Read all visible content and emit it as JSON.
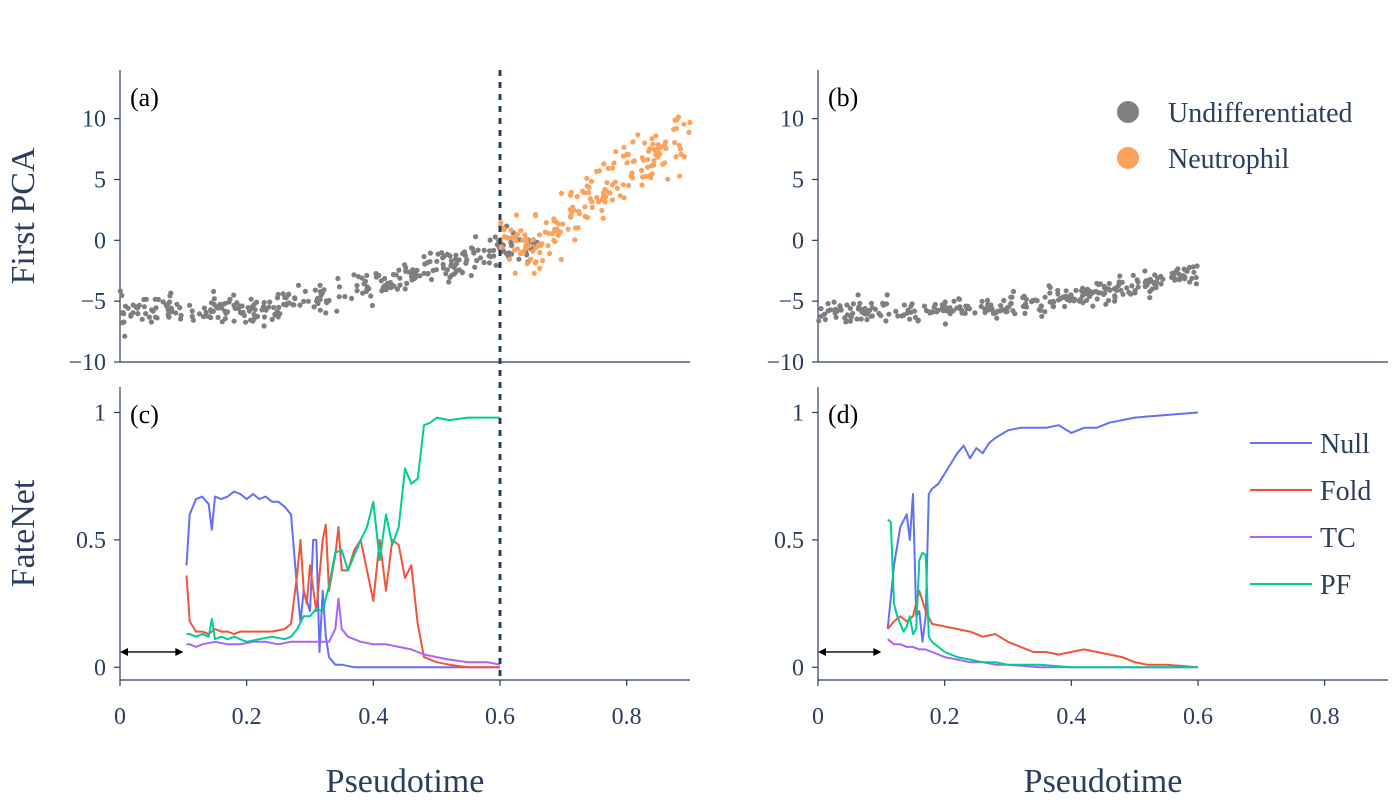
{
  "chart_data": [
    {
      "id": "a",
      "type": "scatter",
      "panel_label": "(a)",
      "ylabel": "First PCA",
      "xlim": [
        0,
        0.9
      ],
      "ylim": [
        -10,
        14
      ],
      "yticks": [
        10,
        5,
        0,
        -5,
        -10
      ],
      "ytick_labels": [
        "10",
        "5",
        "0",
        "−5",
        "−10"
      ],
      "vline": 0.6,
      "series": [
        {
          "name": "Undifferentiated",
          "color": "#7f7f7f",
          "trend": [
            [
              0,
              -5.8
            ],
            [
              0.1,
              -5.7
            ],
            [
              0.2,
              -5.9
            ],
            [
              0.3,
              -4.8
            ],
            [
              0.4,
              -3.6
            ],
            [
              0.5,
              -2.2
            ],
            [
              0.55,
              -1.6
            ],
            [
              0.6,
              -0.6
            ],
            [
              0.65,
              -0.4
            ],
            [
              0.9,
              10
            ]
          ],
          "spread": 0.6,
          "n": 330,
          "xrange": [
            0,
            0.66
          ]
        },
        {
          "name": "Neutrophil",
          "color": "#fea15a",
          "trend": [
            [
              0.58,
              0.5
            ],
            [
              0.62,
              -0.5
            ],
            [
              0.66,
              -0.8
            ],
            [
              0.7,
              1.5
            ],
            [
              0.75,
              3.5
            ],
            [
              0.8,
              5.5
            ],
            [
              0.85,
              7.0
            ],
            [
              0.9,
              9.0
            ]
          ],
          "spread": 1.2,
          "n": 190,
          "xrange": [
            0.6,
            0.9
          ]
        }
      ]
    },
    {
      "id": "b",
      "type": "scatter",
      "panel_label": "(b)",
      "xlim": [
        0,
        0.9
      ],
      "ylim": [
        -10,
        14
      ],
      "yticks": [
        10,
        5,
        0,
        -5,
        -10
      ],
      "ytick_labels": [
        "10",
        "5",
        "0",
        "−5",
        "−10"
      ],
      "legend": {
        "position": "top-right",
        "entries": [
          {
            "name": "Undifferentiated",
            "color": "#7f7f7f"
          },
          {
            "name": "Neutrophil",
            "color": "#fea15a"
          }
        ]
      },
      "series": [
        {
          "name": "Undifferentiated",
          "color": "#7f7f7f",
          "trend": [
            [
              0,
              -5.8
            ],
            [
              0.1,
              -5.9
            ],
            [
              0.2,
              -6.0
            ],
            [
              0.3,
              -5.4
            ],
            [
              0.4,
              -4.6
            ],
            [
              0.5,
              -3.8
            ],
            [
              0.6,
              -2.6
            ]
          ],
          "spread": 0.45,
          "n": 300,
          "xrange": [
            0,
            0.6
          ]
        }
      ]
    },
    {
      "id": "c",
      "type": "line",
      "panel_label": "(c)",
      "ylabel": "FateNet",
      "xlabel": "Pseudotime",
      "xlim": [
        0,
        0.9
      ],
      "ylim": [
        -0.05,
        1.1
      ],
      "xticks": [
        0,
        0.2,
        0.4,
        0.6,
        0.8
      ],
      "xtick_labels": [
        "0",
        "0.2",
        "0.4",
        "0.6",
        "0.8"
      ],
      "yticks": [
        1,
        0.5,
        0
      ],
      "ytick_labels": [
        "1",
        "0.5",
        "0"
      ],
      "vline": 0.6,
      "window_arrow": [
        0,
        0.1
      ],
      "series": [
        {
          "name": "Null",
          "color": "#636efa",
          "x": [
            0.105,
            0.11,
            0.12,
            0.13,
            0.14,
            0.145,
            0.15,
            0.16,
            0.17,
            0.18,
            0.19,
            0.2,
            0.21,
            0.22,
            0.23,
            0.24,
            0.25,
            0.26,
            0.27,
            0.28,
            0.285,
            0.29,
            0.3,
            0.305,
            0.31,
            0.315,
            0.32,
            0.325,
            0.33,
            0.34,
            0.35,
            0.37,
            0.4,
            0.45,
            0.5,
            0.55,
            0.6
          ],
          "y": [
            0.4,
            0.6,
            0.66,
            0.67,
            0.64,
            0.54,
            0.67,
            0.66,
            0.67,
            0.69,
            0.68,
            0.66,
            0.68,
            0.66,
            0.67,
            0.65,
            0.65,
            0.63,
            0.6,
            0.3,
            0.18,
            0.3,
            0.22,
            0.5,
            0.5,
            0.06,
            0.3,
            0.12,
            0.04,
            0.01,
            0.01,
            0.0,
            0.0,
            0.0,
            0.0,
            0.0,
            0.0
          ]
        },
        {
          "name": "Fold",
          "color": "#ef553b",
          "x": [
            0.105,
            0.11,
            0.12,
            0.13,
            0.14,
            0.15,
            0.16,
            0.17,
            0.18,
            0.19,
            0.2,
            0.22,
            0.24,
            0.26,
            0.27,
            0.28,
            0.285,
            0.29,
            0.295,
            0.3,
            0.31,
            0.32,
            0.325,
            0.33,
            0.34,
            0.345,
            0.35,
            0.36,
            0.37,
            0.38,
            0.39,
            0.4,
            0.41,
            0.42,
            0.43,
            0.44,
            0.45,
            0.46,
            0.47,
            0.48,
            0.5,
            0.52,
            0.55,
            0.6
          ],
          "y": [
            0.36,
            0.18,
            0.14,
            0.14,
            0.13,
            0.15,
            0.14,
            0.14,
            0.13,
            0.14,
            0.14,
            0.14,
            0.14,
            0.15,
            0.17,
            0.37,
            0.5,
            0.3,
            0.25,
            0.4,
            0.22,
            0.5,
            0.56,
            0.3,
            0.44,
            0.55,
            0.38,
            0.38,
            0.46,
            0.5,
            0.38,
            0.26,
            0.5,
            0.3,
            0.5,
            0.48,
            0.35,
            0.4,
            0.17,
            0.04,
            0.02,
            0.01,
            0.0,
            0.0
          ]
        },
        {
          "name": "TC",
          "color": "#ab63fa",
          "x": [
            0.105,
            0.11,
            0.12,
            0.13,
            0.15,
            0.17,
            0.19,
            0.21,
            0.23,
            0.25,
            0.27,
            0.29,
            0.31,
            0.33,
            0.34,
            0.345,
            0.35,
            0.36,
            0.38,
            0.4,
            0.42,
            0.44,
            0.46,
            0.48,
            0.5,
            0.52,
            0.55,
            0.58,
            0.6
          ],
          "y": [
            0.09,
            0.09,
            0.08,
            0.09,
            0.1,
            0.09,
            0.09,
            0.1,
            0.1,
            0.09,
            0.1,
            0.1,
            0.1,
            0.1,
            0.15,
            0.27,
            0.15,
            0.12,
            0.1,
            0.09,
            0.09,
            0.08,
            0.07,
            0.05,
            0.04,
            0.03,
            0.02,
            0.02,
            0.01
          ]
        },
        {
          "name": "PF",
          "color": "#00cc96",
          "x": [
            0.105,
            0.11,
            0.12,
            0.13,
            0.14,
            0.145,
            0.15,
            0.16,
            0.17,
            0.18,
            0.19,
            0.2,
            0.22,
            0.24,
            0.26,
            0.27,
            0.28,
            0.29,
            0.3,
            0.31,
            0.32,
            0.33,
            0.34,
            0.35,
            0.36,
            0.37,
            0.38,
            0.39,
            0.4,
            0.41,
            0.42,
            0.43,
            0.44,
            0.45,
            0.46,
            0.47,
            0.48,
            0.49,
            0.5,
            0.52,
            0.55,
            0.58,
            0.6
          ],
          "y": [
            0.13,
            0.13,
            0.12,
            0.13,
            0.12,
            0.19,
            0.11,
            0.12,
            0.11,
            0.12,
            0.11,
            0.1,
            0.11,
            0.12,
            0.11,
            0.12,
            0.15,
            0.2,
            0.2,
            0.23,
            0.22,
            0.32,
            0.45,
            0.46,
            0.38,
            0.44,
            0.5,
            0.55,
            0.65,
            0.42,
            0.6,
            0.48,
            0.55,
            0.78,
            0.72,
            0.74,
            0.95,
            0.96,
            0.98,
            0.97,
            0.98,
            0.98,
            0.98
          ]
        }
      ]
    },
    {
      "id": "d",
      "type": "line",
      "panel_label": "(d)",
      "xlabel": "Pseudotime",
      "xlim": [
        0,
        0.9
      ],
      "ylim": [
        -0.05,
        1.1
      ],
      "xticks": [
        0,
        0.2,
        0.4,
        0.6,
        0.8
      ],
      "xtick_labels": [
        "0",
        "0.2",
        "0.4",
        "0.6",
        "0.8"
      ],
      "yticks": [
        1,
        0.5,
        0
      ],
      "ytick_labels": [
        "1",
        "0.5",
        "0"
      ],
      "window_arrow": [
        0,
        0.1
      ],
      "legend": {
        "position": "top-right",
        "entries": [
          {
            "name": "Null",
            "color": "#636efa"
          },
          {
            "name": "Fold",
            "color": "#ef553b"
          },
          {
            "name": "TC",
            "color": "#ab63fa"
          },
          {
            "name": "PF",
            "color": "#00cc96"
          }
        ]
      },
      "series": [
        {
          "name": "Null",
          "color": "#636efa",
          "x": [
            0.11,
            0.12,
            0.13,
            0.14,
            0.145,
            0.15,
            0.155,
            0.16,
            0.165,
            0.17,
            0.175,
            0.18,
            0.19,
            0.2,
            0.21,
            0.22,
            0.23,
            0.24,
            0.25,
            0.26,
            0.27,
            0.28,
            0.3,
            0.32,
            0.34,
            0.36,
            0.38,
            0.4,
            0.42,
            0.44,
            0.46,
            0.5,
            0.55,
            0.6
          ],
          "y": [
            0.15,
            0.4,
            0.55,
            0.6,
            0.5,
            0.68,
            0.2,
            0.22,
            0.1,
            0.2,
            0.68,
            0.7,
            0.72,
            0.76,
            0.8,
            0.84,
            0.87,
            0.82,
            0.86,
            0.84,
            0.88,
            0.9,
            0.93,
            0.94,
            0.94,
            0.94,
            0.95,
            0.92,
            0.94,
            0.94,
            0.96,
            0.98,
            0.99,
            1.0
          ]
        },
        {
          "name": "Fold",
          "color": "#ef553b",
          "x": [
            0.11,
            0.12,
            0.13,
            0.14,
            0.15,
            0.16,
            0.17,
            0.18,
            0.2,
            0.22,
            0.24,
            0.26,
            0.28,
            0.3,
            0.32,
            0.34,
            0.36,
            0.38,
            0.4,
            0.42,
            0.44,
            0.46,
            0.48,
            0.5,
            0.52,
            0.55,
            0.6
          ],
          "y": [
            0.15,
            0.18,
            0.2,
            0.18,
            0.2,
            0.3,
            0.22,
            0.17,
            0.16,
            0.15,
            0.14,
            0.12,
            0.13,
            0.1,
            0.08,
            0.06,
            0.06,
            0.05,
            0.06,
            0.07,
            0.06,
            0.05,
            0.04,
            0.02,
            0.01,
            0.01,
            0.0
          ]
        },
        {
          "name": "TC",
          "color": "#ab63fa",
          "x": [
            0.11,
            0.12,
            0.13,
            0.14,
            0.15,
            0.16,
            0.17,
            0.18,
            0.19,
            0.2,
            0.22,
            0.24,
            0.26,
            0.28,
            0.3,
            0.35,
            0.4,
            0.5,
            0.6
          ],
          "y": [
            0.11,
            0.09,
            0.09,
            0.08,
            0.08,
            0.07,
            0.07,
            0.06,
            0.05,
            0.04,
            0.03,
            0.02,
            0.02,
            0.01,
            0.01,
            0.0,
            0.0,
            0.0,
            0.0
          ]
        },
        {
          "name": "PF",
          "color": "#00cc96",
          "x": [
            0.11,
            0.115,
            0.12,
            0.125,
            0.13,
            0.135,
            0.14,
            0.145,
            0.15,
            0.155,
            0.16,
            0.165,
            0.17,
            0.175,
            0.18,
            0.19,
            0.2,
            0.22,
            0.24,
            0.26,
            0.28,
            0.3,
            0.35,
            0.4,
            0.5,
            0.6
          ],
          "y": [
            0.58,
            0.57,
            0.25,
            0.2,
            0.17,
            0.14,
            0.16,
            0.2,
            0.13,
            0.15,
            0.42,
            0.45,
            0.44,
            0.12,
            0.1,
            0.08,
            0.06,
            0.04,
            0.03,
            0.02,
            0.02,
            0.01,
            0.01,
            0.0,
            0.0,
            0.0
          ]
        }
      ]
    }
  ]
}
